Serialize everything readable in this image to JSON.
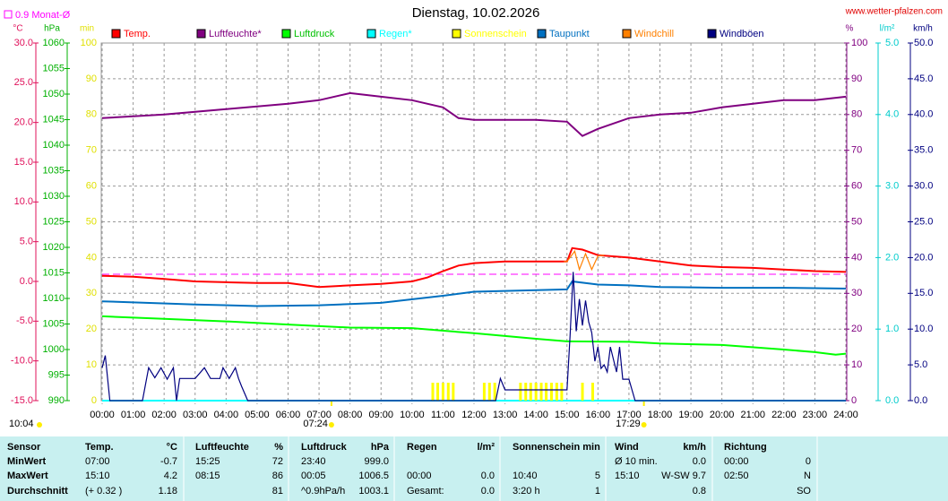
{
  "chart_data": {
    "type": "line",
    "title": "Dienstag, 10.02.2026",
    "source": "www.wetter-pfalzen.com",
    "updated": "10:04",
    "reference": {
      "label": "0.9 Monat-Ø",
      "value": 0.9,
      "axis": "°C",
      "color": "#ff00ff"
    },
    "sunrise": {
      "x": 7.4,
      "label": "07:24"
    },
    "sunset": {
      "x": 17.483,
      "label": "17:29"
    },
    "xlim": [
      0,
      24
    ],
    "xticks": [
      {
        "value": 0,
        "label": "00:00"
      },
      {
        "value": 1,
        "label": "01:00"
      },
      {
        "value": 2,
        "label": "02:00"
      },
      {
        "value": 3,
        "label": "03:00"
      },
      {
        "value": 4,
        "label": "04:00"
      },
      {
        "value": 5,
        "label": "05:00"
      },
      {
        "value": 6,
        "label": "06:00"
      },
      {
        "value": 7,
        "label": "07:00"
      },
      {
        "value": 8,
        "label": "08:00"
      },
      {
        "value": 9,
        "label": "09:00"
      },
      {
        "value": 10,
        "label": "10:00"
      },
      {
        "value": 11,
        "label": "11:00"
      },
      {
        "value": 12,
        "label": "12:00"
      },
      {
        "value": 13,
        "label": "13:00"
      },
      {
        "value": 14,
        "label": "14:00"
      },
      {
        "value": 15,
        "label": "15:00"
      },
      {
        "value": 16,
        "label": "16:00"
      },
      {
        "value": 17,
        "label": "17:00"
      },
      {
        "value": 18,
        "label": "18:00"
      },
      {
        "value": 19,
        "label": "19:00"
      },
      {
        "value": 20,
        "label": "20:00"
      },
      {
        "value": 21,
        "label": "21:00"
      },
      {
        "value": 22,
        "label": "22:00"
      },
      {
        "value": 23,
        "label": "23:00"
      },
      {
        "value": 24,
        "label": "24:00"
      }
    ],
    "axes": [
      {
        "unit": "°C",
        "color": "#e0105a",
        "lim": [
          -15,
          30
        ],
        "ticks": [
          {
            "value": -15,
            "label": "-15.0"
          },
          {
            "value": -10,
            "label": "-10.0"
          },
          {
            "value": -5,
            "label": "-5.0"
          },
          {
            "value": 0,
            "label": "0.0"
          },
          {
            "value": 5,
            "label": "5.0"
          },
          {
            "value": 10,
            "label": "10.0"
          },
          {
            "value": 15,
            "label": "15.0"
          },
          {
            "value": 20,
            "label": "20.0"
          },
          {
            "value": 25,
            "label": "25.0"
          },
          {
            "value": 30,
            "label": "30.0"
          }
        ]
      },
      {
        "unit": "hPa",
        "color": "#00b000",
        "lim": [
          990,
          1060
        ],
        "ticks": [
          990,
          995,
          1000,
          1005,
          1010,
          1015,
          1020,
          1025,
          1030,
          1035,
          1040,
          1045,
          1050,
          1055,
          1060
        ]
      },
      {
        "unit": "min",
        "color": "#e0e000",
        "lim": [
          0,
          100
        ],
        "ticks": [
          0,
          10,
          20,
          30,
          40,
          50,
          60,
          70,
          80,
          90,
          100
        ],
        "grid": true
      },
      {
        "unit": "%",
        "color": "#800080",
        "lim": [
          0,
          100
        ],
        "ticks": [
          0,
          10,
          20,
          30,
          40,
          50,
          60,
          70,
          80,
          90,
          100
        ]
      },
      {
        "unit": "l/m²",
        "color": "#00cccc",
        "lim": [
          0,
          5
        ],
        "ticks": [
          {
            "value": 0,
            "label": "0.0"
          },
          {
            "value": 1,
            "label": "1.0"
          },
          {
            "value": 2,
            "label": "2.0"
          },
          {
            "value": 3,
            "label": "3.0"
          },
          {
            "value": 4,
            "label": "4.0"
          },
          {
            "value": 5,
            "label": "5.0"
          }
        ]
      },
      {
        "unit": "km/h",
        "color": "#000080",
        "lim": [
          0,
          50
        ],
        "ticks": [
          {
            "value": 0,
            "label": "0.0"
          },
          {
            "value": 5,
            "label": "5.0"
          },
          {
            "value": 10,
            "label": "10.0"
          },
          {
            "value": 15,
            "label": "15.0"
          },
          {
            "value": 20,
            "label": "20.0"
          },
          {
            "value": 25,
            "label": "25.0"
          },
          {
            "value": 30,
            "label": "30.0"
          },
          {
            "value": 35,
            "label": "35.0"
          },
          {
            "value": 40,
            "label": "40.0"
          },
          {
            "value": 45,
            "label": "45.0"
          },
          {
            "value": 50,
            "label": "50.0"
          }
        ]
      }
    ],
    "series": [
      {
        "name": "Temp.",
        "color": "#ff0000",
        "axis": "°C",
        "kind": "line",
        "x": [
          0,
          1,
          2,
          3,
          4,
          5,
          6,
          7,
          8,
          9,
          10,
          10.5,
          11,
          11.5,
          12,
          13,
          14,
          15,
          15.17,
          15.5,
          16,
          17,
          18,
          19,
          20,
          21,
          22,
          23,
          24
        ],
        "values": [
          0.7,
          0.6,
          0.3,
          0.0,
          -0.1,
          -0.2,
          -0.2,
          -0.7,
          -0.5,
          -0.3,
          0.0,
          0.5,
          1.3,
          2.0,
          2.3,
          2.5,
          2.5,
          2.5,
          4.2,
          4.0,
          3.3,
          3.0,
          2.5,
          2.0,
          1.8,
          1.7,
          1.5,
          1.3,
          1.2
        ]
      },
      {
        "name": "Luftfeuchte*",
        "color": "#800080",
        "axis": "%",
        "kind": "line",
        "x": [
          0,
          2,
          4,
          6,
          7,
          8,
          9,
          10,
          11,
          11.5,
          12,
          13,
          14,
          15,
          15.5,
          16,
          17,
          18,
          19,
          20,
          21,
          22,
          23,
          24
        ],
        "values": [
          79,
          80,
          81.5,
          83,
          84,
          86,
          85,
          84,
          82,
          79,
          78.5,
          78.5,
          78.5,
          78,
          74,
          76,
          79,
          80,
          80.5,
          82,
          83,
          84,
          84,
          85
        ]
      },
      {
        "name": "Luftdruck",
        "color": "#00ff00",
        "axis": "hPa",
        "kind": "line",
        "x": [
          0,
          2,
          4,
          6,
          8,
          10,
          12,
          14,
          15,
          17,
          18,
          20,
          22,
          23,
          23.67,
          24
        ],
        "values": [
          1006.5,
          1006.0,
          1005.5,
          1004.9,
          1004.3,
          1004.2,
          1003.2,
          1002.1,
          1001.6,
          1001.5,
          1001.2,
          1000.9,
          1000.0,
          999.5,
          999.0,
          999.2
        ]
      },
      {
        "name": "Regen*",
        "color": "#00ffff",
        "axis": "l/m²",
        "kind": "line",
        "x": [
          0,
          24
        ],
        "values": [
          0,
          0
        ]
      },
      {
        "name": "Sonnenschein",
        "color": "#ffff00",
        "axis": "min",
        "kind": "bar",
        "x": [
          10.67,
          10.83,
          11.0,
          11.17,
          11.33,
          12.33,
          12.5,
          12.67,
          13.5,
          13.67,
          13.83,
          14.0,
          14.17,
          14.33,
          14.5,
          14.67,
          14.83,
          15.5,
          15.83
        ],
        "values": [
          5,
          5,
          5,
          5,
          5,
          5,
          5,
          5,
          5,
          5,
          5,
          5,
          5,
          5,
          5,
          5,
          5,
          5,
          5
        ]
      },
      {
        "name": "Taupunkt",
        "color": "#0070c0",
        "axis": "°C",
        "kind": "line",
        "x": [
          0,
          3,
          5,
          7,
          9,
          11,
          12,
          13,
          15,
          15.17,
          16,
          17,
          18,
          20,
          22,
          24
        ],
        "values": [
          -2.5,
          -2.9,
          -3.1,
          -3.0,
          -2.7,
          -1.8,
          -1.3,
          -1.2,
          -1.0,
          0.0,
          -0.4,
          -0.5,
          -0.7,
          -0.8,
          -0.8,
          -0.9
        ]
      },
      {
        "name": "Windchill",
        "color": "#ff8000",
        "axis": "°C",
        "kind": "line",
        "x": [
          14.9,
          15.0,
          15.25,
          15.4,
          15.6,
          15.8,
          16.0,
          16.2
        ],
        "values": [
          2.5,
          2.5,
          3.8,
          1.5,
          3.5,
          1.5,
          3.2,
          3.3
        ]
      },
      {
        "name": "Windböen",
        "color": "#000080",
        "axis": "km/h",
        "kind": "line",
        "x": [
          0,
          0.1,
          0.25,
          1.3,
          1.5,
          1.7,
          1.9,
          2.1,
          2.3,
          2.4,
          2.5,
          3.0,
          3.3,
          3.5,
          3.8,
          3.9,
          4.1,
          4.3,
          4.4,
          4.5,
          4.7,
          12.7,
          12.85,
          13.0,
          15.0,
          15.1,
          15.2,
          15.3,
          15.4,
          15.5,
          15.6,
          15.7,
          15.8,
          15.9,
          16.0,
          16.1,
          16.2,
          16.3,
          16.4,
          16.6,
          16.7,
          16.8,
          17.0,
          17.2,
          24
        ],
        "values": [
          4.6,
          6.3,
          0,
          0,
          4.6,
          3.2,
          4.6,
          3.0,
          4.6,
          0,
          3.1,
          3.1,
          4.6,
          3.1,
          3.1,
          4.6,
          3.1,
          4.6,
          3.1,
          2.0,
          0,
          0,
          3.1,
          1.5,
          1.5,
          9.0,
          18.0,
          9.7,
          14.2,
          10.5,
          14.0,
          11.0,
          9.5,
          5.5,
          7.5,
          4.5,
          5.0,
          4.0,
          7.5,
          4.0,
          7.5,
          3.0,
          3.0,
          0,
          0
        ]
      }
    ]
  },
  "table": {
    "header": [
      "Sensor",
      "Temp.",
      "°C",
      "Luftfeuchte",
      "%",
      "Luftdruck",
      "hPa",
      "Regen",
      "l/m²",
      "Sonnenschein min",
      null,
      "Wind",
      "km/h",
      "Richtung",
      null
    ],
    "rows": [
      [
        "MinWert",
        "07:00",
        "-0.7",
        "15:25",
        "72",
        "23:40",
        "999.0",
        null,
        null,
        null,
        null,
        "Ø 10 min.",
        "0.0",
        "00:00",
        "0"
      ],
      [
        "MaxWert",
        "15:10",
        "4.2",
        "08:15",
        "86",
        "00:05",
        "1006.5",
        "00:00",
        "0.0",
        "10:40",
        "5",
        "15:10",
        "W-SW 9.7",
        "02:50",
        "N"
      ],
      [
        "Durchschnitt",
        "(+ 0.32 )",
        "1.18",
        null,
        "81",
        "^0.9hPa/h",
        "1003.1",
        "Gesamt:",
        "0.0",
        "3:20 h",
        "1",
        null,
        "0.8",
        null,
        "SO"
      ]
    ]
  }
}
